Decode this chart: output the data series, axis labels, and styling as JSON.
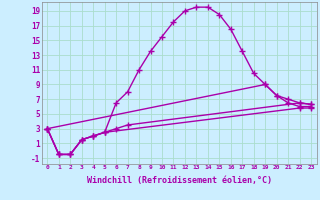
{
  "bg_color": "#cceeff",
  "grid_color": "#aaddcc",
  "line_color": "#aa00aa",
  "marker": "+",
  "markersize": 4,
  "linewidth": 1.0,
  "xlabel": "Windchill (Refroidissement éolien,°C)",
  "xlabel_fontsize": 6,
  "ytick_labels": [
    "-1",
    "1",
    "3",
    "5",
    "7",
    "9",
    "11",
    "13",
    "15",
    "17",
    "19"
  ],
  "ytick_values": [
    -1,
    1,
    3,
    5,
    7,
    9,
    11,
    13,
    15,
    17,
    19
  ],
  "xlim": [
    -0.5,
    23.5
  ],
  "ylim": [
    -1.8,
    20.2
  ],
  "xtick_values": [
    0,
    1,
    2,
    3,
    4,
    5,
    6,
    7,
    8,
    9,
    10,
    11,
    12,
    13,
    14,
    15,
    16,
    17,
    18,
    19,
    20,
    21,
    22,
    23
  ],
  "line1_x": [
    0,
    1,
    2,
    3,
    4,
    5,
    6,
    7,
    8,
    9,
    10,
    11,
    12,
    13,
    14,
    15,
    16,
    17,
    18,
    19,
    20,
    21,
    22,
    23
  ],
  "line1_y": [
    3,
    -0.5,
    -0.5,
    1.5,
    2.0,
    2.5,
    6.5,
    8.0,
    11.0,
    13.5,
    15.5,
    17.5,
    19.0,
    19.5,
    19.5,
    18.5,
    16.5,
    13.5,
    10.5,
    9.0,
    7.5,
    6.5,
    6.0,
    6.0
  ],
  "line2_x": [
    0,
    1,
    2,
    3,
    4,
    5,
    6,
    7,
    22,
    23
  ],
  "line2_y": [
    3,
    -0.5,
    -0.5,
    1.5,
    2.0,
    2.5,
    3.0,
    3.5,
    6.5,
    6.3
  ],
  "line3_x": [
    0,
    1,
    2,
    3,
    4,
    5,
    22,
    23
  ],
  "line3_y": [
    3,
    -0.5,
    -0.5,
    1.5,
    2.0,
    2.5,
    5.8,
    5.8
  ],
  "line4_x": [
    0,
    19,
    20,
    21,
    22,
    23
  ],
  "line4_y": [
    3,
    9.0,
    7.5,
    7.0,
    6.5,
    6.3
  ]
}
